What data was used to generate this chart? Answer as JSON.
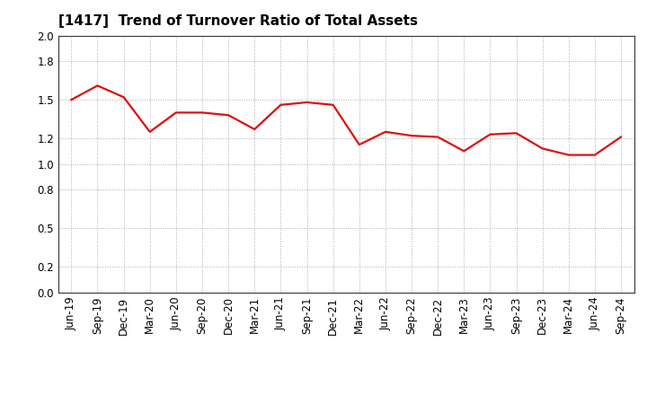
{
  "title": "[1417]  Trend of Turnover Ratio of Total Assets",
  "x_labels": [
    "Jun-19",
    "Sep-19",
    "Dec-19",
    "Mar-20",
    "Jun-20",
    "Sep-20",
    "Dec-20",
    "Mar-21",
    "Jun-21",
    "Sep-21",
    "Dec-21",
    "Mar-22",
    "Jun-22",
    "Sep-22",
    "Dec-22",
    "Mar-23",
    "Jun-23",
    "Sep-23",
    "Dec-23",
    "Mar-24",
    "Jun-24",
    "Sep-24"
  ],
  "y_values": [
    1.5,
    1.61,
    1.52,
    1.25,
    1.4,
    1.4,
    1.38,
    1.27,
    1.46,
    1.48,
    1.46,
    1.15,
    1.25,
    1.22,
    1.21,
    1.1,
    1.23,
    1.24,
    1.12,
    1.07,
    1.07,
    1.21
  ],
  "ylim": [
    0.0,
    2.0
  ],
  "yticks": [
    0.0,
    0.2,
    0.5,
    0.8,
    1.0,
    1.2,
    1.5,
    1.8,
    2.0
  ],
  "line_color": "#dd1111",
  "line_width": 1.6,
  "bg_color": "#ffffff",
  "grid_color": "#aaaaaa",
  "title_fontsize": 11,
  "tick_fontsize": 8.5
}
